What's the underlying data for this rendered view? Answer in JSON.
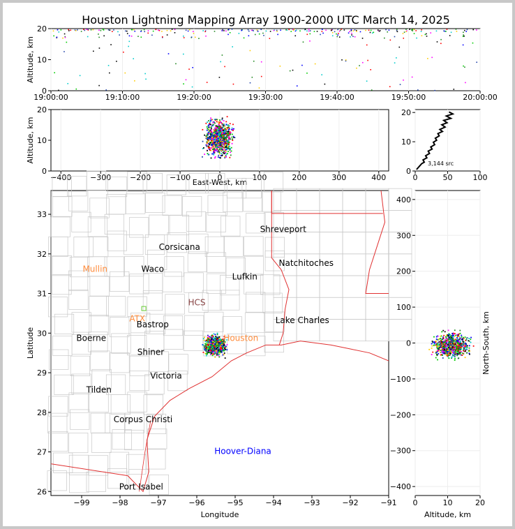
{
  "title": "Houston Lightning Mapping Array 1900-2000 UTC March 14, 2025",
  "colors": {
    "frame_bg": "#c8c8c8",
    "panel_bg": "#ffffff",
    "county_lines": "#c8c8c8",
    "state_lines": "#e03030",
    "coast_lines": "#e03030",
    "altitude_profile": "#000000",
    "source_palette": [
      "#0000ff",
      "#00cc00",
      "#ff0000",
      "#000000",
      "#ff00ff",
      "#00cccc",
      "#ffcc00",
      "#228822",
      "#2244aa"
    ],
    "site_orange": "#ff8c3c",
    "site_blue": "#0000ff",
    "station_green": "#66cc33"
  },
  "chart_data": [
    {
      "id": "time_height",
      "type": "scatter",
      "x_axis": {
        "label": "",
        "ticks": [
          "19:00:00",
          "19:10:00",
          "19:20:00",
          "19:30:00",
          "19:40:00",
          "19:50:00",
          "20:00:00"
        ],
        "range_minutes": [
          0,
          60
        ]
      },
      "y_axis": {
        "label": "Altitude, km",
        "ticks": [
          0,
          10,
          20
        ],
        "range": [
          0,
          20
        ]
      },
      "points_description": "lightning sources spread across entire hour, altitudes 0-20 km"
    },
    {
      "id": "ew_height",
      "type": "scatter",
      "x_axis": {
        "label": "East-West, km",
        "ticks": [
          -400,
          -300,
          -200,
          -100,
          0,
          100,
          200,
          300,
          400
        ],
        "range": [
          -425,
          425
        ]
      },
      "y_axis": {
        "label": "Altitude, km",
        "ticks": [
          0,
          10,
          20
        ],
        "range": [
          0,
          20
        ]
      },
      "cluster": {
        "x_center": -5,
        "x_spread": 45,
        "alt_range": [
          0,
          20
        ]
      }
    },
    {
      "id": "altitude_histogram",
      "type": "line",
      "x_axis": {
        "ticks": [
          0,
          50,
          100
        ],
        "range": [
          0,
          100
        ]
      },
      "y_axis": {
        "ticks": [
          0,
          10,
          20
        ],
        "range": [
          0,
          21
        ]
      },
      "annotation": "3,144 src",
      "profile": [
        [
          2,
          0.5
        ],
        [
          6,
          1.5
        ],
        [
          10,
          2.5
        ],
        [
          14,
          3.0
        ],
        [
          12,
          3.8
        ],
        [
          18,
          4.5
        ],
        [
          16,
          5.2
        ],
        [
          22,
          6.0
        ],
        [
          20,
          6.8
        ],
        [
          26,
          7.5
        ],
        [
          24,
          8.2
        ],
        [
          30,
          9.0
        ],
        [
          28,
          9.8
        ],
        [
          33,
          10.5
        ],
        [
          31,
          11.2
        ],
        [
          37,
          12.0
        ],
        [
          35,
          12.8
        ],
        [
          42,
          13.5
        ],
        [
          38,
          14.2
        ],
        [
          46,
          15.0
        ],
        [
          41,
          15.8
        ],
        [
          49,
          16.5
        ],
        [
          44,
          17.3
        ],
        [
          55,
          18.0
        ],
        [
          48,
          18.8
        ],
        [
          58,
          19.5
        ],
        [
          52,
          20.2
        ]
      ]
    },
    {
      "id": "plan_view",
      "type": "scatter",
      "x_axis": {
        "label": "Longitude",
        "ticks": [
          -99,
          -98,
          -97,
          -96,
          -95,
          -94,
          -93,
          -92,
          -91
        ],
        "range": [
          -99.8,
          -91.0
        ]
      },
      "y_axis": {
        "label": "Latitude",
        "ticks": [
          26,
          27,
          28,
          29,
          30,
          31,
          32,
          33
        ],
        "range": [
          25.9,
          33.6
        ]
      },
      "cluster": {
        "lon_center": -95.55,
        "lat_center": 29.7,
        "lon_spread": 0.45,
        "lat_spread": 0.4
      },
      "labels": [
        {
          "text": "Shreveport",
          "lon": -93.75,
          "lat": 32.55,
          "color": "#000000"
        },
        {
          "text": "Corsicana",
          "lon": -96.45,
          "lat": 32.1,
          "color": "#000000"
        },
        {
          "text": "Mullin",
          "lon": -98.65,
          "lat": 31.55,
          "color": "#ff8c3c"
        },
        {
          "text": "Waco",
          "lon": -97.15,
          "lat": 31.55,
          "color": "#000000"
        },
        {
          "text": "Natchitoches",
          "lon": -93.15,
          "lat": 31.7,
          "color": "#000000"
        },
        {
          "text": "Lufkin",
          "lon": -94.75,
          "lat": 31.35,
          "color": "#000000"
        },
        {
          "text": "HCS",
          "lon": -96.0,
          "lat": 30.7,
          "color": "#884444"
        },
        {
          "text": "ATX",
          "lon": -97.55,
          "lat": 30.3,
          "color": "#ff8c3c"
        },
        {
          "text": "Bastrop",
          "lon": -97.15,
          "lat": 30.15,
          "color": "#000000"
        },
        {
          "text": "Lake Charles",
          "lon": -93.25,
          "lat": 30.25,
          "color": "#000000"
        },
        {
          "text": "Boerne",
          "lon": -98.75,
          "lat": 29.8,
          "color": "#000000"
        },
        {
          "text": "Houston",
          "lon": -94.85,
          "lat": 29.8,
          "color": "#ff8c3c"
        },
        {
          "text": "Shiner",
          "lon": -97.2,
          "lat": 29.45,
          "color": "#000000"
        },
        {
          "text": "Victoria",
          "lon": -96.8,
          "lat": 28.85,
          "color": "#000000"
        },
        {
          "text": "Tilden",
          "lon": -98.55,
          "lat": 28.5,
          "color": "#000000"
        },
        {
          "text": "Corpus Christi",
          "lon": -97.4,
          "lat": 27.75,
          "color": "#000000"
        },
        {
          "text": "Hoover-Diana",
          "lon": -94.8,
          "lat": 26.95,
          "color": "#0000ff"
        },
        {
          "text": "Port Isabel",
          "lon": -97.45,
          "lat": 26.05,
          "color": "#000000"
        }
      ],
      "stations": [
        {
          "lon": -97.38,
          "lat": 30.62
        }
      ]
    },
    {
      "id": "ns_height",
      "type": "scatter",
      "x_axis": {
        "label": "Altitude, km",
        "ticks": [
          0,
          10,
          20
        ],
        "range": [
          0,
          20
        ]
      },
      "y_axis": {
        "label": "North-South, km",
        "ticks": [
          -400,
          -300,
          -200,
          -100,
          0,
          100,
          200,
          300,
          400
        ],
        "range": [
          -425,
          425
        ]
      },
      "cluster": {
        "ns_center": -5,
        "ns_spread": 45
      }
    }
  ]
}
